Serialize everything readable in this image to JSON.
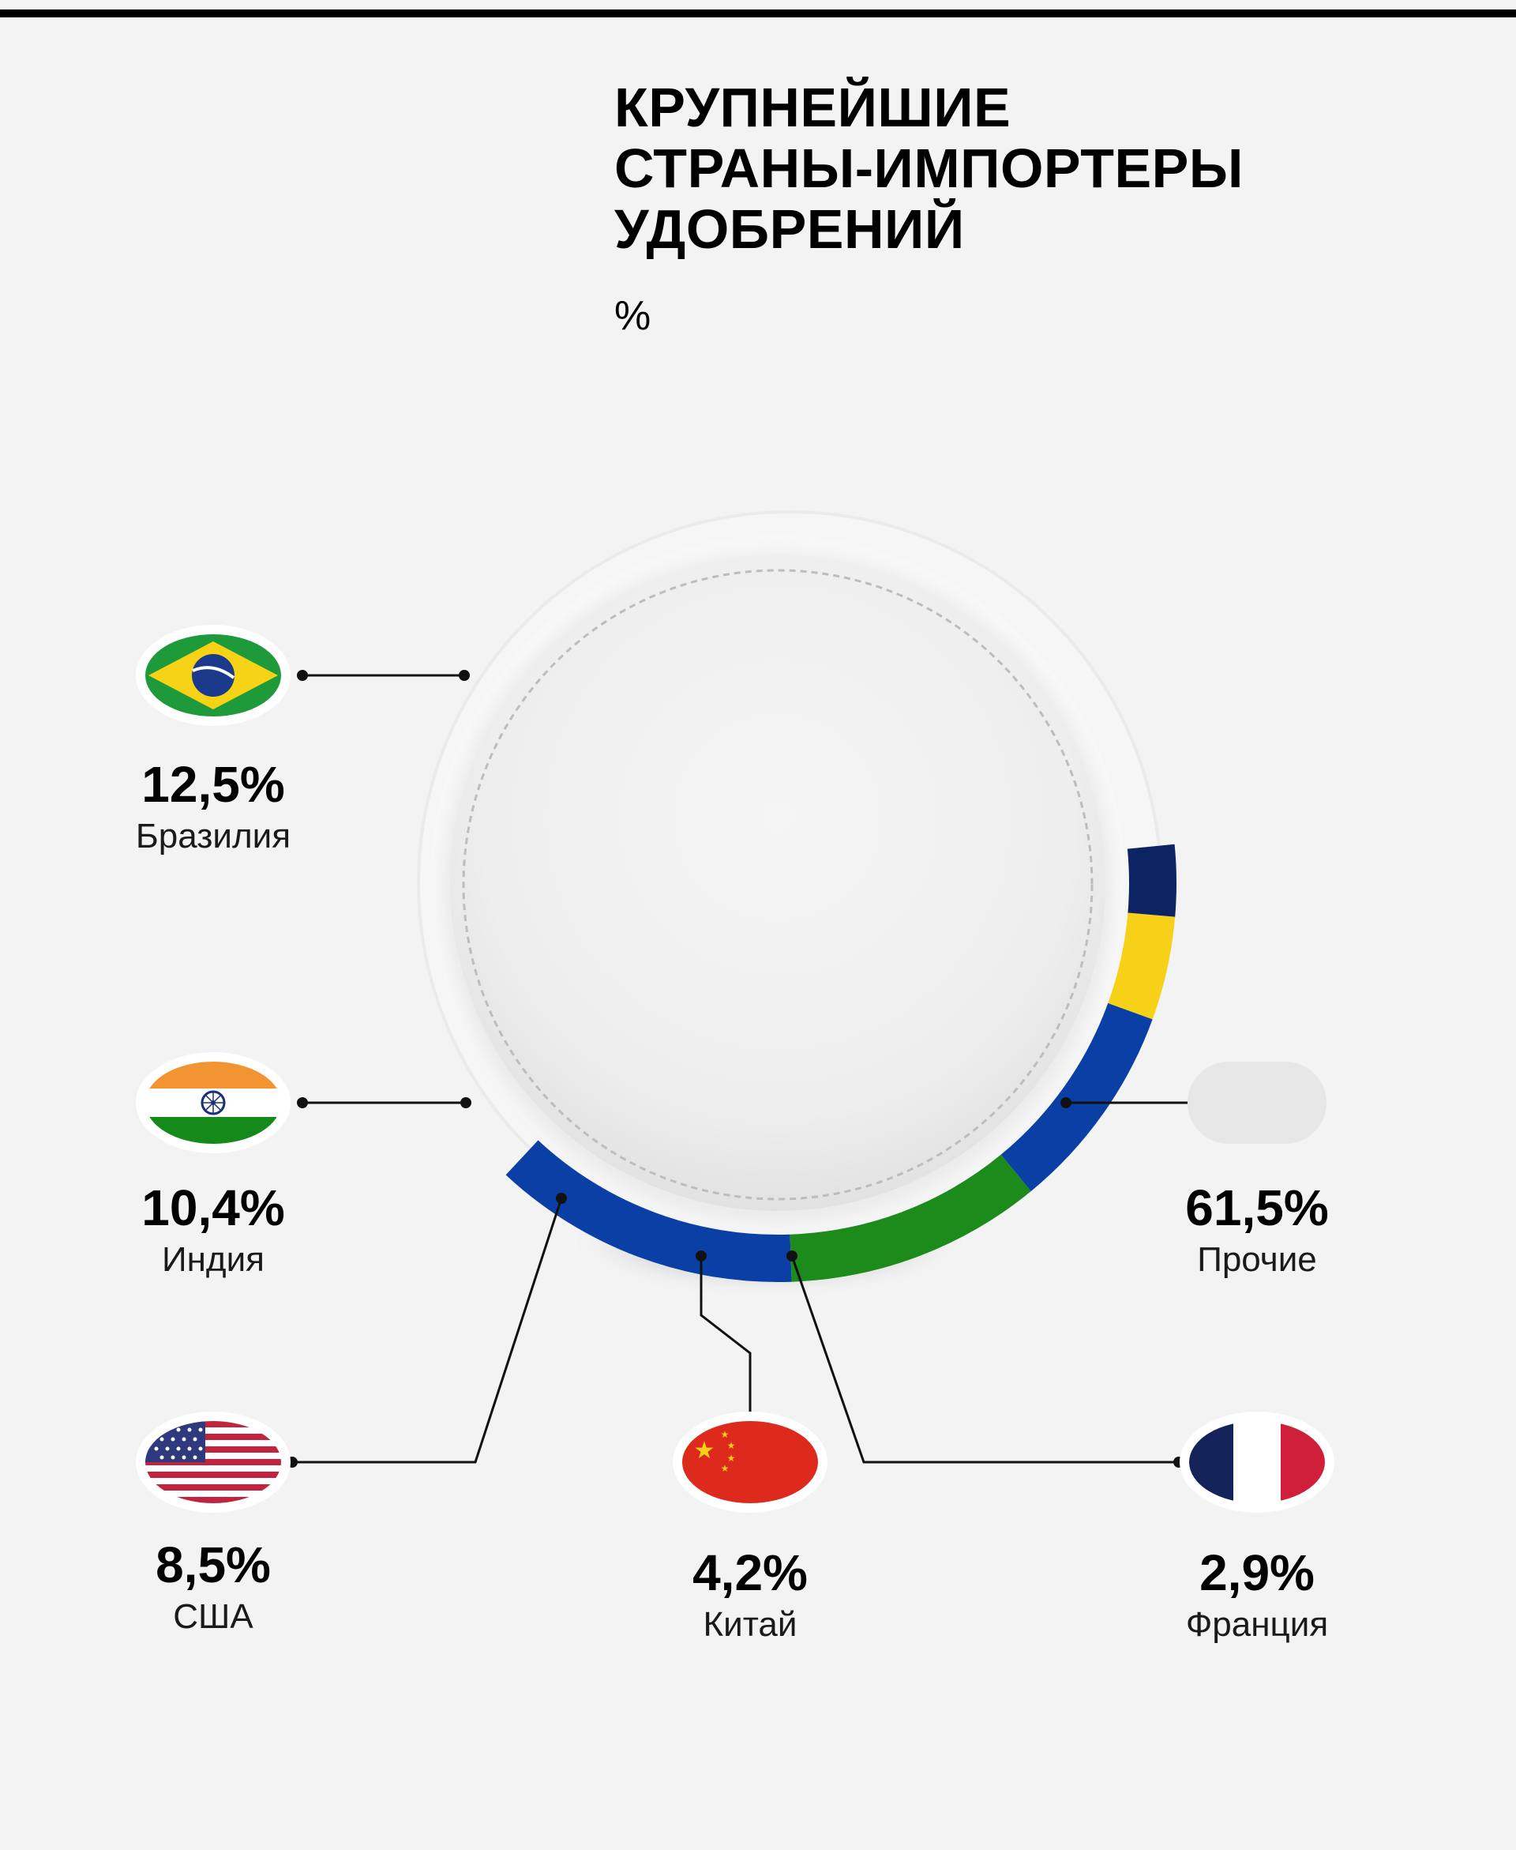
{
  "title": [
    "КРУПНЕЙШИЕ",
    "СТРАНЫ-ИМПОРТЕРЫ",
    "УДОБРЕНИЙ"
  ],
  "unit": "%",
  "chart_data": {
    "type": "pie",
    "title": "КРУПНЕЙШИЕ СТРАНЫ-ИМПОРТЕРЫ УДОБРЕНИЙ",
    "unit": "%",
    "slices": [
      {
        "key": "brazil",
        "label": "Бразилия",
        "value": 12.5,
        "value_label": "12,5%",
        "color": "#0a3fa6"
      },
      {
        "key": "india",
        "label": "Индия",
        "value": 10.4,
        "value_label": "10,4%",
        "color": "#1d8a1c"
      },
      {
        "key": "usa",
        "label": "США",
        "value": 8.5,
        "value_label": "8,5%",
        "color": "#0a3fa6"
      },
      {
        "key": "china",
        "label": "Китай",
        "value": 4.2,
        "value_label": "4,2%",
        "color": "#f7d118"
      },
      {
        "key": "france",
        "label": "Франция",
        "value": 2.9,
        "value_label": "2,9%",
        "color": "#0c2461"
      },
      {
        "key": "other",
        "label": "Прочие",
        "value": 61.5,
        "value_label": "61,5%",
        "color": "#e6e6e6"
      }
    ],
    "legend": "flag badges beside each slice"
  },
  "colors": {
    "background": "#f3f3f3",
    "text": "#000000",
    "connector": "#111111"
  },
  "icons": [
    "brazil-flag-icon",
    "india-flag-icon",
    "usa-flag-icon",
    "china-flag-icon",
    "france-flag-icon",
    "other-placeholder-icon"
  ]
}
